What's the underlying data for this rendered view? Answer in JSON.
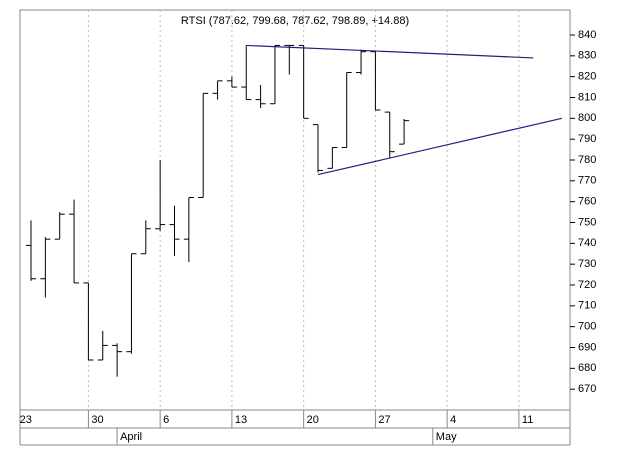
{
  "chart_data": {
    "type": "ohlc",
    "title": "RTSI (787.62, 799.68, 787.62, 798.89, +14.88)",
    "categories": [
      "23",
      null,
      null,
      null,
      null,
      "30",
      null,
      null,
      null,
      null,
      "6",
      null,
      null,
      null,
      null,
      "13",
      null,
      null,
      null,
      null,
      "20",
      null,
      null,
      null,
      null,
      "27",
      null,
      null,
      null,
      null,
      "4",
      null,
      null,
      null,
      null,
      "11",
      null,
      null,
      null
    ],
    "month_labels": [
      null,
      null,
      null,
      null,
      null,
      null,
      null,
      "April",
      null,
      null,
      null,
      null,
      null,
      null,
      null,
      null,
      null,
      null,
      null,
      null,
      null,
      null,
      null,
      null,
      null,
      null,
      null,
      null,
      null,
      "May",
      null,
      null,
      null,
      null,
      null,
      null,
      null,
      null,
      null
    ],
    "open": [
      null,
      739,
      723,
      742,
      754,
      721,
      684,
      691,
      688,
      735,
      747,
      749,
      742,
      762,
      812,
      818,
      815,
      809,
      807,
      835,
      835,
      797,
      776,
      786,
      822,
      832,
      803,
      787.62,
      null,
      null,
      null,
      null,
      null,
      null,
      null,
      null,
      null,
      null,
      null
    ],
    "high": [
      null,
      751,
      743,
      755,
      761,
      721,
      698,
      692,
      735,
      751,
      780,
      758,
      762,
      812,
      818,
      820,
      835,
      816,
      835,
      835,
      835,
      797,
      786,
      822,
      833,
      832,
      803,
      799.68,
      null,
      null,
      null,
      null,
      null,
      null,
      null,
      null,
      null,
      null,
      null
    ],
    "low": [
      null,
      722,
      714,
      742,
      721,
      684,
      684,
      676,
      687,
      735,
      746,
      734,
      731,
      762,
      809,
      815,
      809,
      805,
      807,
      821,
      800,
      774,
      776,
      786,
      821,
      804,
      781,
      787.62,
      null,
      null,
      null,
      null,
      null,
      null,
      null,
      null,
      null,
      null,
      null
    ],
    "close": [
      null,
      723,
      742,
      754,
      721,
      684,
      691,
      688,
      735,
      747,
      749,
      742,
      762,
      812,
      818,
      815,
      809,
      807,
      835,
      835,
      800,
      775,
      786,
      822,
      832,
      804,
      784,
      798.89,
      null,
      null,
      null,
      null,
      null,
      null,
      null,
      null,
      null,
      null,
      null
    ],
    "color": "#000000",
    "ylim": [
      660,
      852
    ],
    "yticks": [
      670,
      680,
      690,
      700,
      710,
      720,
      730,
      740,
      750,
      760,
      770,
      780,
      790,
      800,
      810,
      820,
      830,
      840
    ],
    "grid": true,
    "trendlines": [
      {
        "x": [
          16,
          36
        ],
        "values": [
          835,
          829
        ],
        "color": "#1f1f80"
      },
      {
        "x": [
          21,
          38
        ],
        "values": [
          773,
          800
        ],
        "color": "#1f1f80"
      }
    ]
  }
}
